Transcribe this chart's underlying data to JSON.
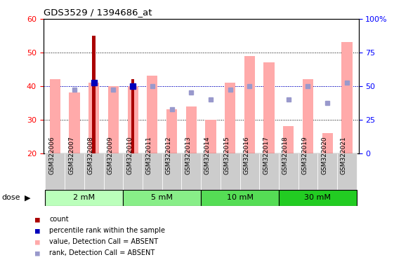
{
  "title": "GDS3529 / 1394686_at",
  "samples": [
    "GSM322006",
    "GSM322007",
    "GSM322008",
    "GSM322009",
    "GSM322010",
    "GSM322011",
    "GSM322012",
    "GSM322013",
    "GSM322014",
    "GSM322015",
    "GSM322016",
    "GSM322017",
    "GSM322018",
    "GSM322019",
    "GSM322020",
    "GSM322021"
  ],
  "doses": [
    {
      "label": "2 mM",
      "start": 0,
      "end": 3
    },
    {
      "label": "5 mM",
      "start": 4,
      "end": 7
    },
    {
      "label": "10 mM",
      "start": 8,
      "end": 11
    },
    {
      "label": "30 mM",
      "start": 12,
      "end": 15
    }
  ],
  "count_values": [
    null,
    null,
    55,
    null,
    42,
    null,
    null,
    null,
    null,
    null,
    null,
    null,
    null,
    null,
    null,
    null
  ],
  "percentile_rank_values": [
    null,
    null,
    41,
    null,
    40,
    null,
    null,
    null,
    null,
    null,
    null,
    null,
    null,
    null,
    null,
    null
  ],
  "absent_value": [
    42,
    38,
    41,
    40,
    40,
    43,
    33,
    34,
    30,
    41,
    49,
    47,
    28,
    42,
    26,
    53
  ],
  "absent_rank": [
    null,
    39,
    null,
    39,
    40,
    40,
    33,
    38,
    36,
    39,
    40,
    null,
    36,
    40,
    35,
    41
  ],
  "ylim": [
    20,
    60
  ],
  "yticks": [
    20,
    30,
    40,
    50,
    60
  ],
  "right_yticks": [
    0,
    25,
    50,
    75,
    100
  ],
  "right_ylabels": [
    "0",
    "25",
    "50",
    "75",
    "100%"
  ],
  "bar_color_red": "#aa0000",
  "bar_color_pink": "#ffaaaa",
  "dot_color_blue": "#0000bb",
  "dot_color_lightblue": "#9999cc",
  "dose_colors": [
    "#bbffbb",
    "#88ee88",
    "#55dd55",
    "#22cc22"
  ],
  "bg_gray": "#cccccc",
  "grid_color": [
    30,
    40,
    50
  ]
}
